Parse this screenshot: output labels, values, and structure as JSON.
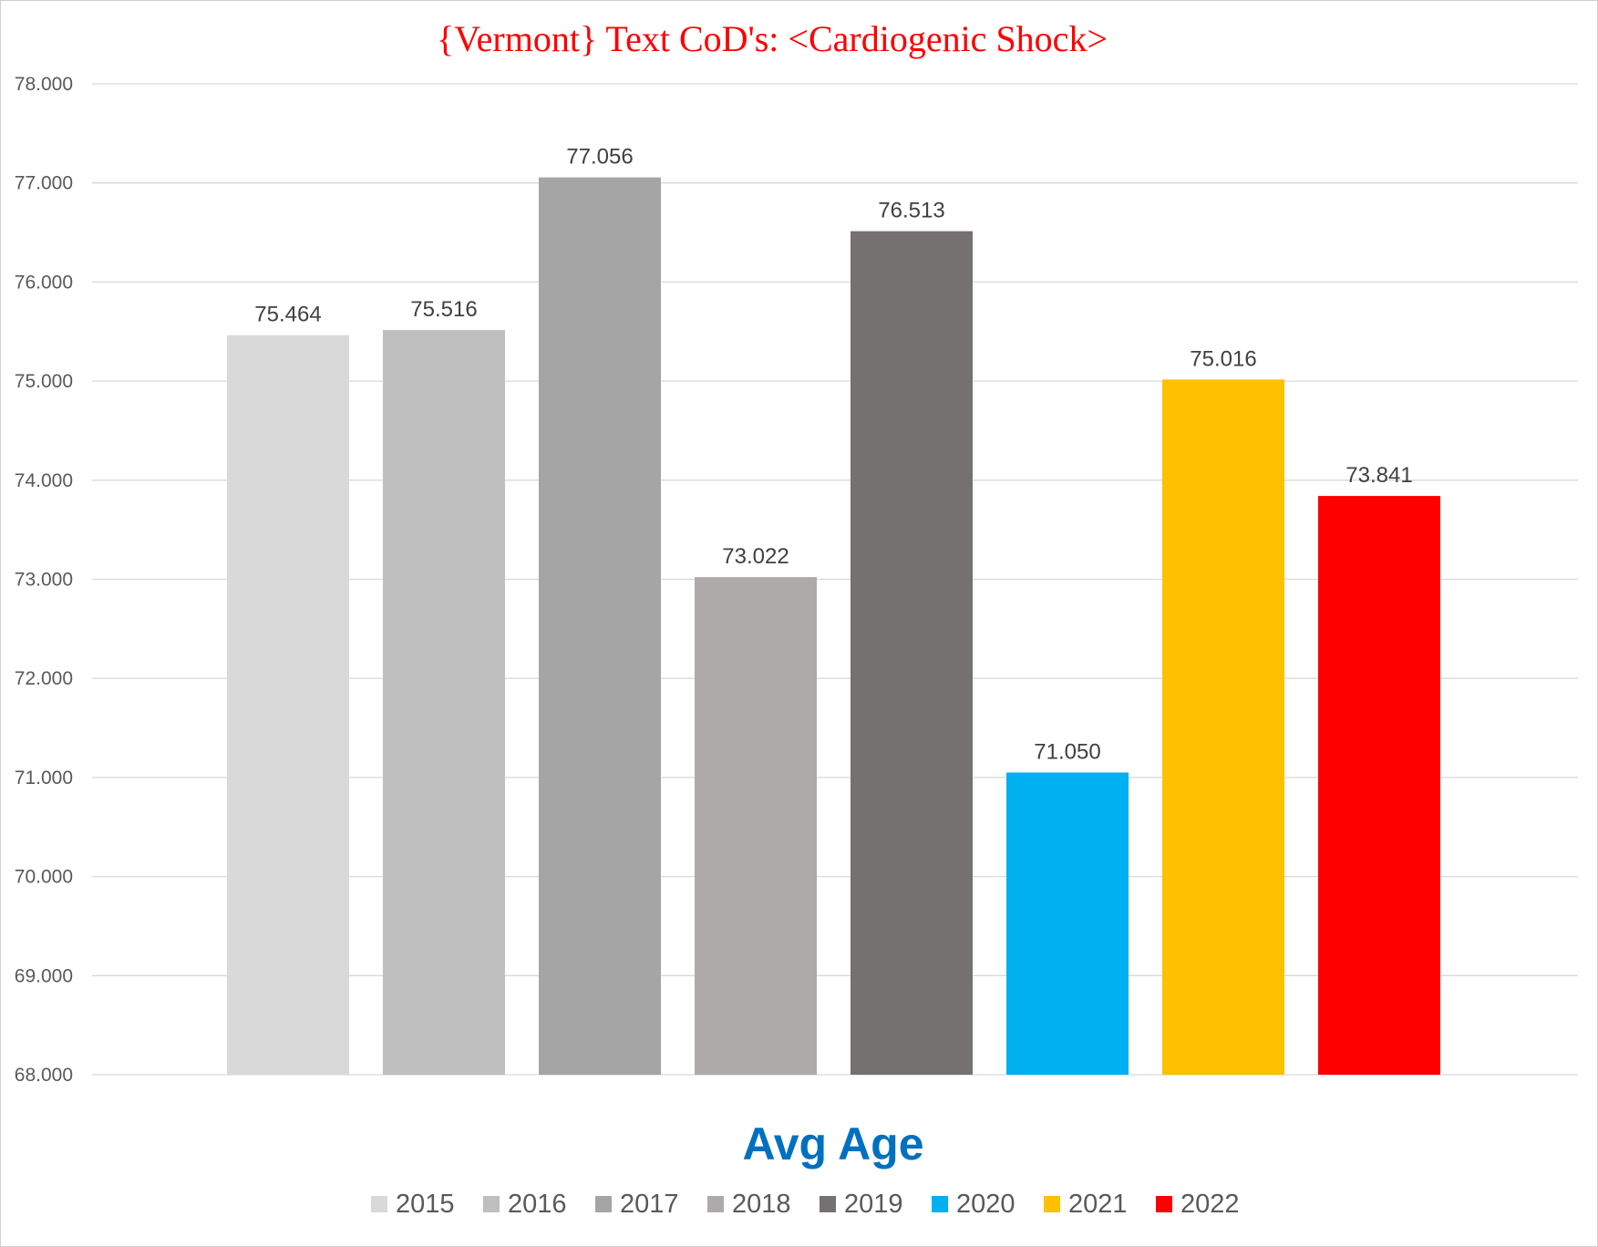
{
  "chart_data": {
    "type": "bar",
    "title": "{Vermont}  Text CoD's: <Cardiogenic Shock>",
    "title_color": "#ff0000",
    "xlabel": "Avg Age",
    "xlabel_color": "#0070c0",
    "ylabel": "",
    "ylim": [
      68,
      78
    ],
    "ytick_step": 1,
    "ytick_labels": [
      "68.000",
      "69.000",
      "70.000",
      "71.000",
      "72.000",
      "73.000",
      "74.000",
      "75.000",
      "76.000",
      "77.000",
      "78.000"
    ],
    "grid": true,
    "legend_position": "bottom",
    "series": [
      {
        "name": "2015",
        "value": 75.464,
        "label": "75.464",
        "color": "#d9d9d9"
      },
      {
        "name": "2016",
        "value": 75.516,
        "label": "75.516",
        "color": "#bfbfbf"
      },
      {
        "name": "2017",
        "value": 77.056,
        "label": "77.056",
        "color": "#a5a5a5"
      },
      {
        "name": "2018",
        "value": 73.022,
        "label": "73.022",
        "color": "#aeaaaa"
      },
      {
        "name": "2019",
        "value": 76.513,
        "label": "76.513",
        "color": "#767171"
      },
      {
        "name": "2020",
        "value": 71.05,
        "label": "71.050",
        "color": "#00b0f0"
      },
      {
        "name": "2021",
        "value": 75.016,
        "label": "75.016",
        "color": "#ffc000"
      },
      {
        "name": "2022",
        "value": 73.841,
        "label": "73.841",
        "color": "#ff0000"
      }
    ]
  }
}
